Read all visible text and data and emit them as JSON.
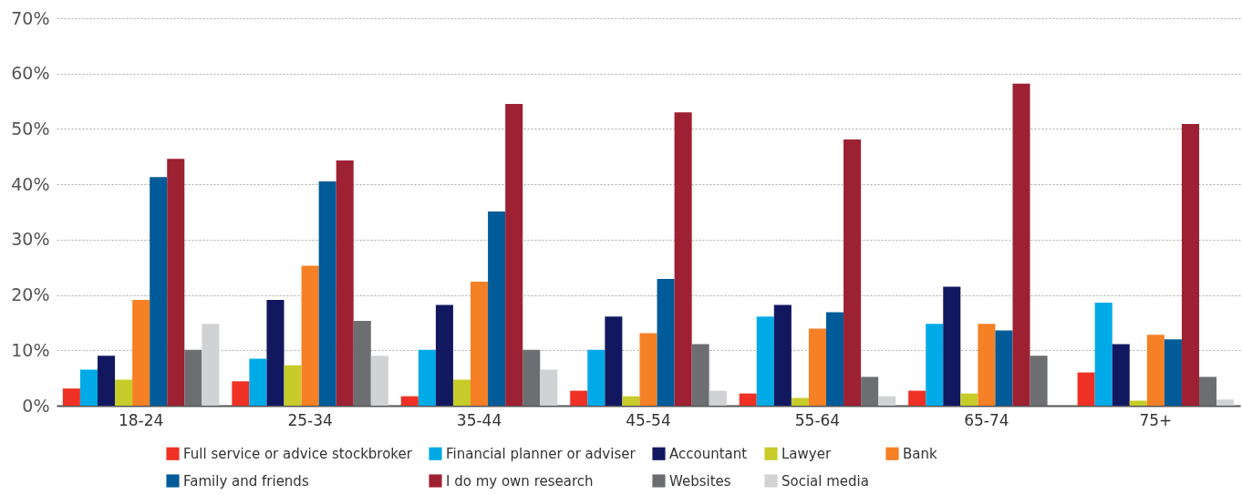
{
  "chart_data": {
    "type": "bar",
    "categories": [
      "18-24",
      "25-34",
      "35-44",
      "45-54",
      "55-64",
      "65-74",
      "75+"
    ],
    "series": [
      {
        "name": "Full service or advice stockbroker",
        "color": "#ee3124",
        "values": [
          3.1,
          4.4,
          1.7,
          2.7,
          2.2,
          2.7,
          6.0
        ]
      },
      {
        "name": "Financial planner or adviser",
        "color": "#00aae7",
        "values": [
          6.5,
          8.5,
          10.1,
          10.1,
          16.1,
          14.8,
          18.6
        ]
      },
      {
        "name": "Accountant",
        "color": "#121860",
        "values": [
          9.0,
          19.1,
          18.2,
          16.1,
          18.2,
          21.5,
          11.1
        ]
      },
      {
        "name": "Lawyer",
        "color": "#c7cc2a",
        "values": [
          4.7,
          7.3,
          4.7,
          1.7,
          1.4,
          2.2,
          0.9
        ]
      },
      {
        "name": "Bank",
        "color": "#f58025",
        "values": [
          19.1,
          25.3,
          22.4,
          13.1,
          13.9,
          14.8,
          12.8
        ]
      },
      {
        "name": "Family and friends",
        "color": "#005b98",
        "values": [
          41.3,
          40.5,
          35.1,
          22.9,
          16.9,
          13.6,
          12.0
        ]
      },
      {
        "name": "I do my own research",
        "color": "#9e2133",
        "values": [
          44.6,
          44.3,
          54.5,
          53.0,
          48.1,
          58.2,
          50.9
        ]
      },
      {
        "name": "Websites",
        "color": "#6d6e71",
        "values": [
          10.1,
          15.3,
          10.1,
          11.1,
          5.2,
          9.0,
          5.2
        ]
      },
      {
        "name": "Social media",
        "color": "#d1d2d4",
        "values": [
          14.8,
          9.0,
          6.5,
          2.7,
          1.7,
          null,
          1.1
        ]
      }
    ],
    "ylim": [
      0,
      70
    ],
    "yticks": [
      {
        "value": 0,
        "label": "0%"
      },
      {
        "value": 10,
        "label": "10%"
      },
      {
        "value": 20,
        "label": "20%"
      },
      {
        "value": 30,
        "label": "30%"
      },
      {
        "value": 40,
        "label": "40%"
      },
      {
        "value": 50,
        "label": "50%"
      },
      {
        "value": 60,
        "label": "60%"
      },
      {
        "value": 70,
        "label": "70%"
      }
    ],
    "grid": "y",
    "legend": "bottom"
  }
}
